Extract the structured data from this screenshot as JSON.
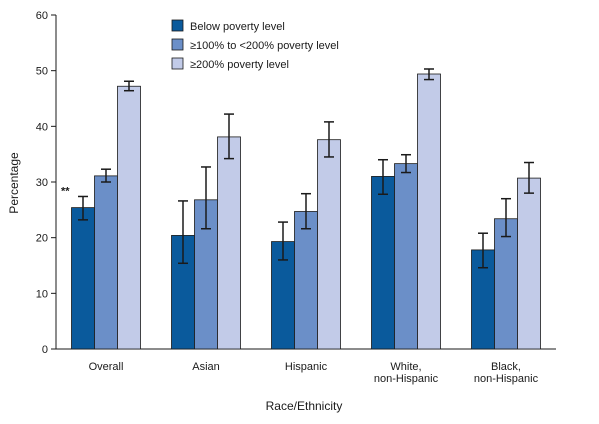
{
  "chart_data": {
    "type": "bar",
    "xlabel": "Race/Ethnicity",
    "ylabel": "Percentage",
    "ylim": [
      0,
      60
    ],
    "yticks": [
      0,
      10,
      20,
      30,
      40,
      50,
      60
    ],
    "categories": [
      [
        "Overall"
      ],
      [
        "Asian"
      ],
      [
        "Hispanic"
      ],
      [
        "White,",
        "non-Hispanic"
      ],
      [
        "Black,",
        "non-Hispanic"
      ]
    ],
    "series": [
      {
        "name": "Below poverty level",
        "color": "#0a5a9c",
        "values": [
          25.4,
          20.4,
          19.3,
          31.0,
          17.8
        ],
        "ci_low": [
          23.2,
          15.4,
          16.0,
          27.8,
          14.6
        ],
        "ci_high": [
          27.4,
          26.6,
          22.8,
          34.0,
          20.8
        ]
      },
      {
        "name": "≥100% to <200% poverty level",
        "color": "#6b8fc8",
        "values": [
          31.1,
          26.8,
          24.7,
          33.3,
          23.4
        ],
        "ci_low": [
          30.0,
          21.6,
          21.6,
          31.7,
          20.2
        ],
        "ci_high": [
          32.3,
          32.7,
          27.9,
          34.9,
          27.0
        ]
      },
      {
        "name": "≥200% poverty level",
        "color": "#c2cbe8",
        "values": [
          47.2,
          38.1,
          37.6,
          49.4,
          30.7
        ],
        "ci_low": [
          46.4,
          34.2,
          34.5,
          48.4,
          28.0
        ],
        "ci_high": [
          48.1,
          42.2,
          40.8,
          50.3,
          33.5
        ]
      }
    ],
    "annotations": [
      {
        "category_index": 0,
        "series_index": 0,
        "text": "**"
      }
    ],
    "legend_placement": "top-center",
    "grid": false
  }
}
